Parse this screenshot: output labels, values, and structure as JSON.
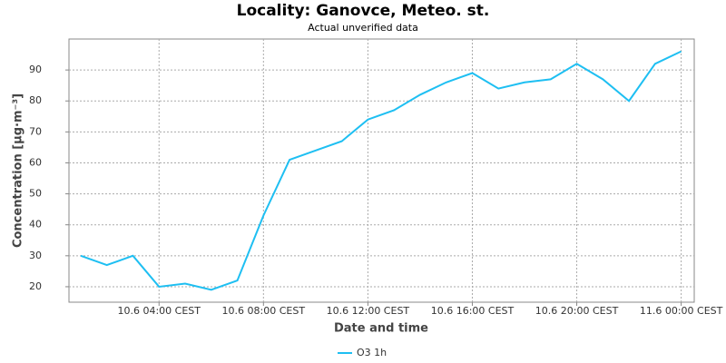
{
  "chart_data": {
    "type": "line",
    "title": "Locality: Ganovce, Meteo. st.",
    "subtitle": "Actual unverified data",
    "x_label": "Date and time",
    "y_label": "Concentration [µg·m⁻³]",
    "x": [
      1,
      2,
      3,
      4,
      5,
      6,
      7,
      8,
      9,
      10,
      11,
      12,
      13,
      14,
      15,
      16,
      17,
      18,
      19,
      20,
      21,
      22,
      23,
      24
    ],
    "series": [
      {
        "name": "O3 1h",
        "color": "#1ebff2",
        "values": [
          30,
          27,
          30,
          20,
          21,
          19,
          22,
          43,
          61,
          64,
          67,
          74,
          77,
          82,
          86,
          89,
          84,
          86,
          87,
          92,
          87,
          80,
          92,
          96
        ]
      }
    ],
    "xlim": [
      0.55,
      24.5
    ],
    "xticks": [
      {
        "value": 4,
        "label": "10.6 04:00 CEST"
      },
      {
        "value": 8,
        "label": "10.6 08:00 CEST"
      },
      {
        "value": 12,
        "label": "10.6 12:00 CEST"
      },
      {
        "value": 16,
        "label": "10.6 16:00 CEST"
      },
      {
        "value": 20,
        "label": "10.6 20:00 CEST"
      },
      {
        "value": 24,
        "label": "11.6 00:00 CEST"
      }
    ],
    "ylim": [
      15,
      100
    ],
    "yticks": [
      20,
      30,
      40,
      50,
      60,
      70,
      80,
      90
    ],
    "grid": true
  }
}
